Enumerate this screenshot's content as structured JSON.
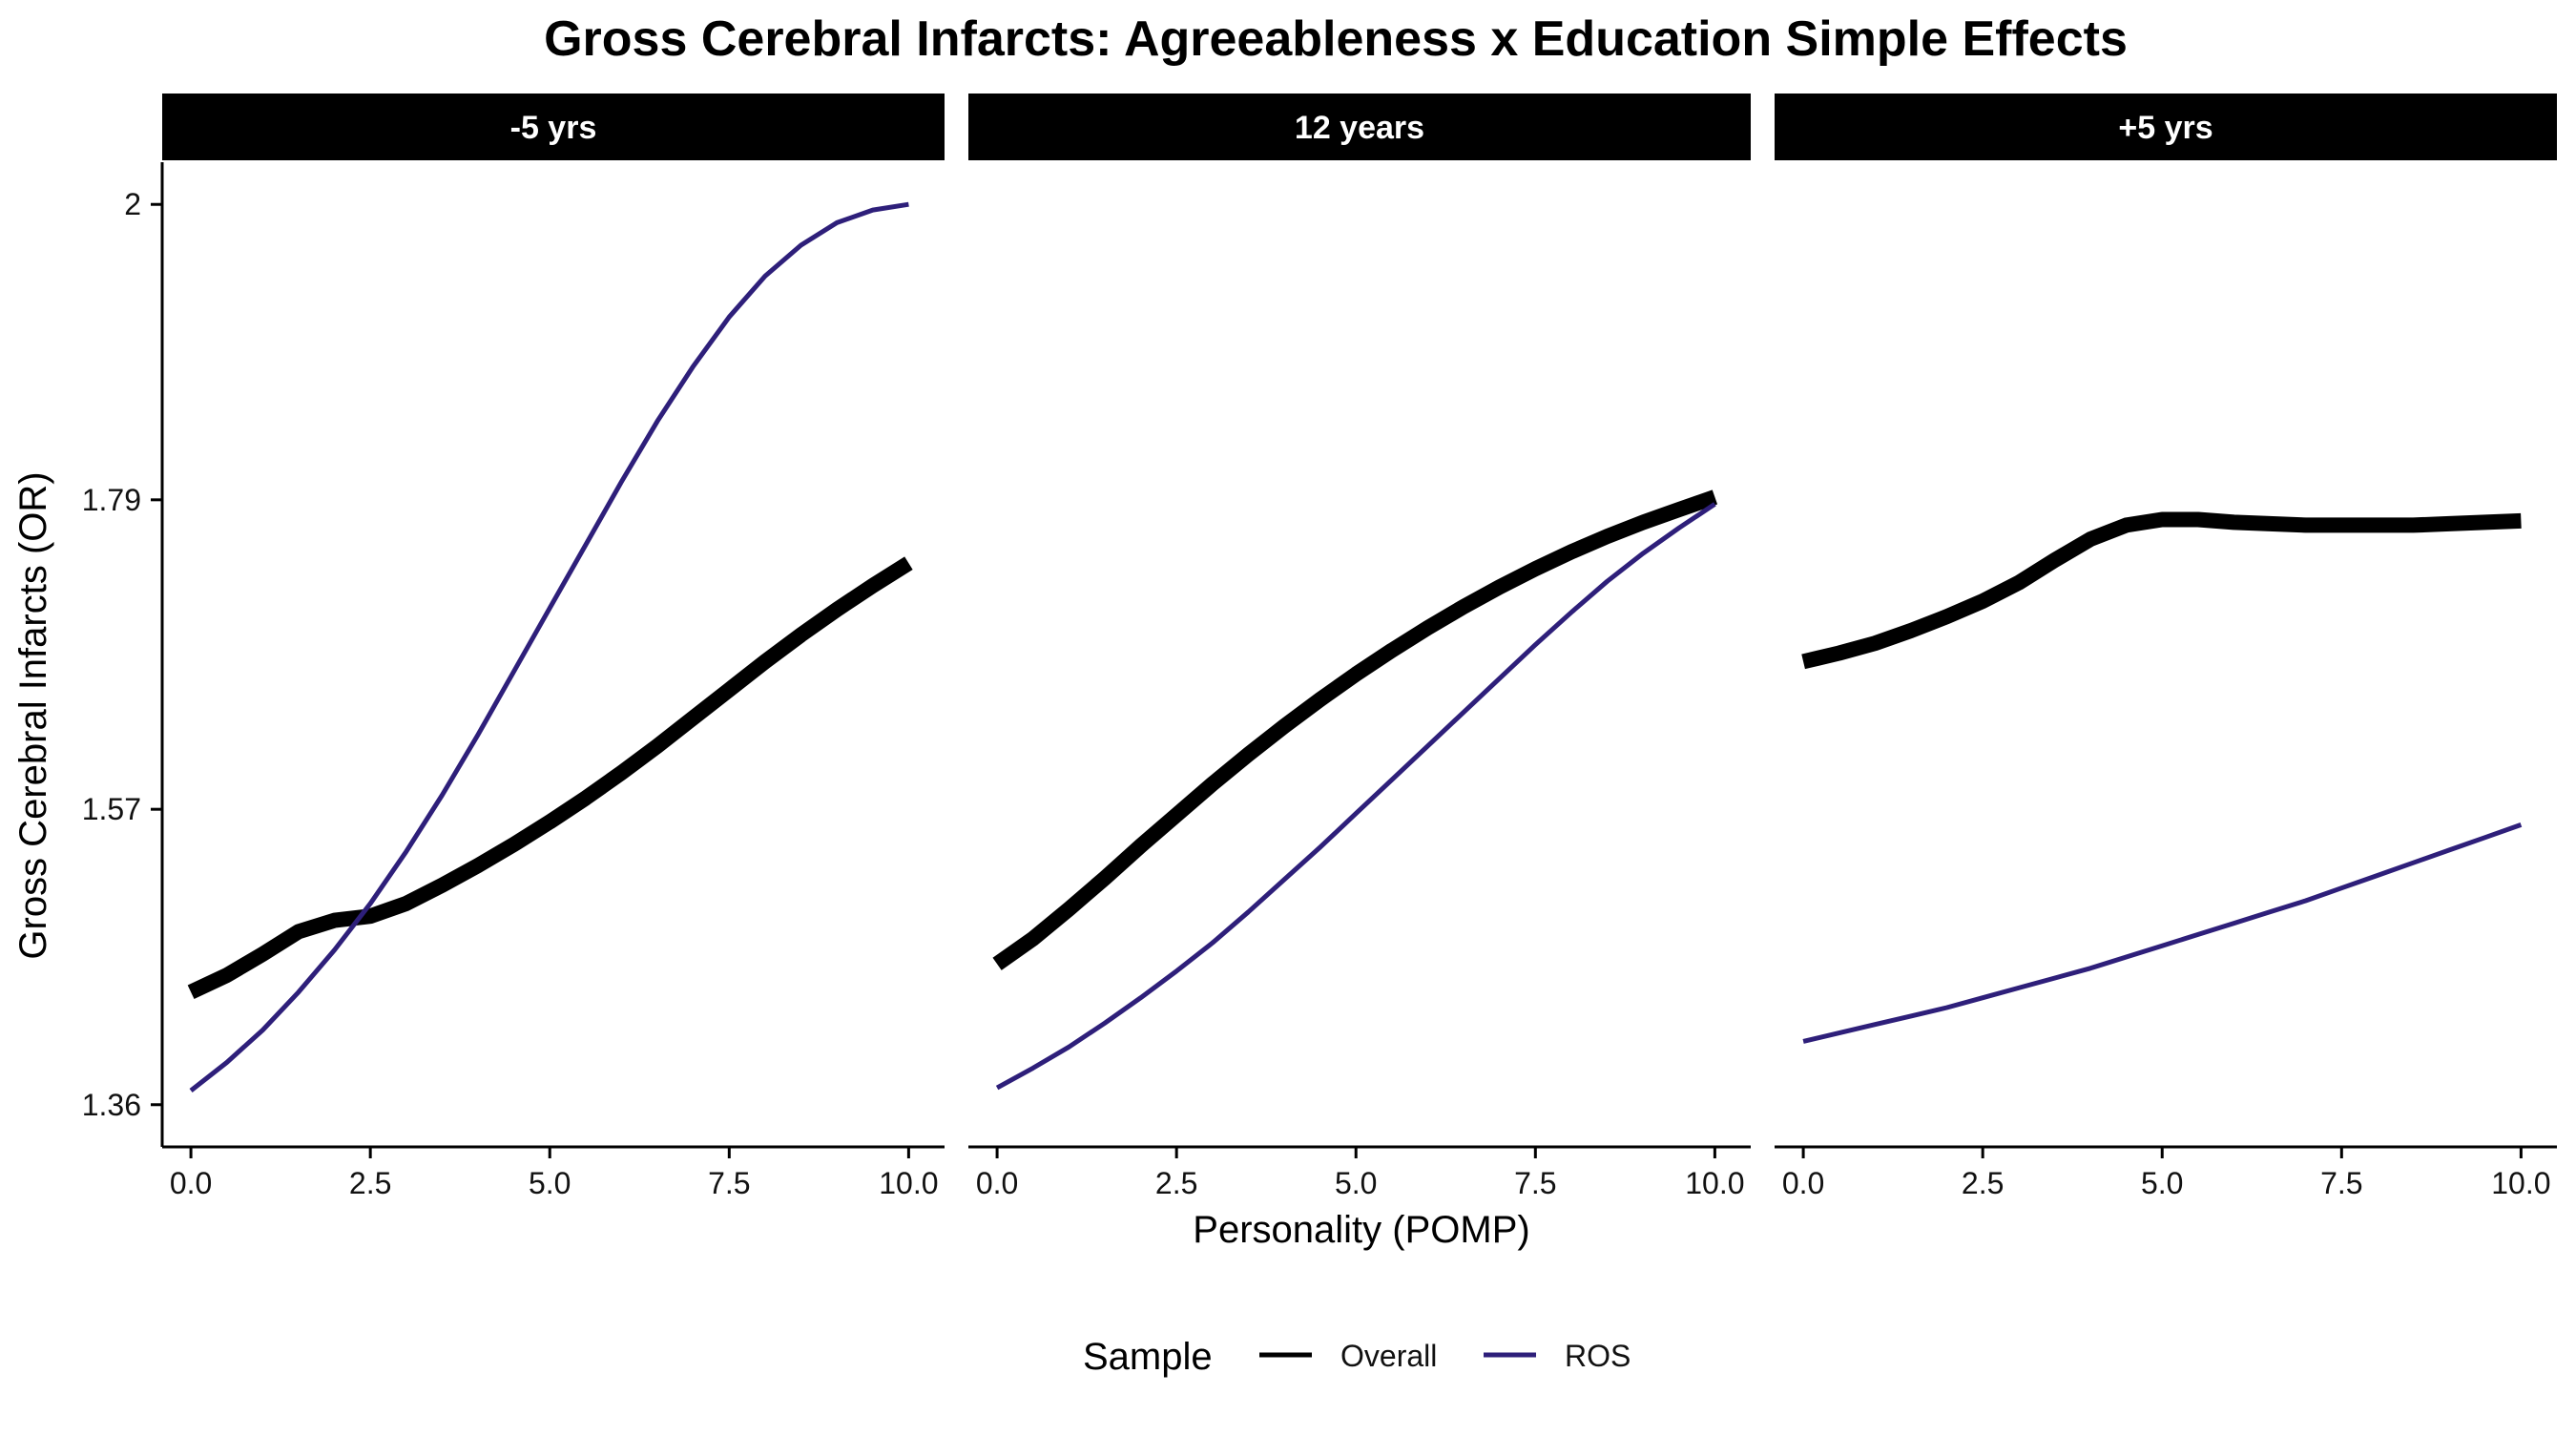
{
  "chart_data": {
    "type": "line",
    "title": "Gross Cerebral Infarcts: Agreeableness x Education Simple Effects",
    "xlabel": "Personality (POMP)",
    "ylabel": "Gross Cerebral Infarcts (OR)",
    "xlim": [
      -0.4,
      10.5
    ],
    "ylim": [
      1.33,
      2.03
    ],
    "x_ticks": [
      0,
      2.5,
      5,
      7.5,
      10
    ],
    "x_tick_labels": [
      "0.0",
      "2.5",
      "5.0",
      "7.5",
      "10.0"
    ],
    "y_ticks": [
      1.36,
      1.57,
      1.79,
      2.0
    ],
    "y_tick_labels": [
      "1.36",
      "1.57",
      "1.79",
      "2"
    ],
    "grid": false,
    "legend": {
      "title": "Sample",
      "placement": "bottom",
      "entries": [
        {
          "name": "Overall",
          "color": "#000000"
        },
        {
          "name": "ROS",
          "color": "#2e1f7a"
        }
      ]
    },
    "facets": [
      {
        "label": "-5 yrs",
        "series": [
          {
            "name": "Overall",
            "color": "#000000",
            "x": [
              0,
              0.5,
              1,
              1.5,
              2,
              2.5,
              3,
              3.5,
              4,
              4.5,
              5,
              5.5,
              6,
              6.5,
              7,
              7.5,
              8,
              8.5,
              9,
              9.5,
              10
            ],
            "y": [
              1.44,
              1.452,
              1.467,
              1.483,
              1.491,
              1.494,
              1.503,
              1.516,
              1.53,
              1.545,
              1.561,
              1.578,
              1.596,
              1.615,
              1.635,
              1.655,
              1.675,
              1.694,
              1.712,
              1.729,
              1.745
            ]
          },
          {
            "name": "ROS",
            "color": "#2e1f7a",
            "x": [
              0,
              0.5,
              1,
              1.5,
              2,
              2.5,
              3,
              3.5,
              4,
              4.5,
              5,
              5.5,
              6,
              6.5,
              7,
              7.5,
              8,
              8.5,
              9,
              9.5,
              10
            ],
            "y": [
              1.37,
              1.39,
              1.413,
              1.44,
              1.47,
              1.503,
              1.54,
              1.58,
              1.623,
              1.668,
              1.713,
              1.758,
              1.803,
              1.846,
              1.885,
              1.92,
              1.949,
              1.971,
              1.987,
              1.996,
              2.0
            ]
          }
        ]
      },
      {
        "label": "12 years",
        "series": [
          {
            "name": "Overall",
            "color": "#000000",
            "x": [
              0,
              0.5,
              1,
              1.5,
              2,
              2.5,
              3,
              3.5,
              4,
              4.5,
              5,
              5.5,
              6,
              6.5,
              7,
              7.5,
              8,
              8.5,
              9,
              9.5,
              10
            ],
            "y": [
              1.46,
              1.478,
              1.499,
              1.521,
              1.544,
              1.566,
              1.588,
              1.609,
              1.629,
              1.648,
              1.666,
              1.683,
              1.699,
              1.714,
              1.728,
              1.741,
              1.753,
              1.764,
              1.774,
              1.783,
              1.792
            ]
          },
          {
            "name": "ROS",
            "color": "#2e1f7a",
            "x": [
              0,
              0.5,
              1,
              1.5,
              2,
              2.5,
              3,
              3.5,
              4,
              4.5,
              5,
              5.5,
              6,
              6.5,
              7,
              7.5,
              8,
              8.5,
              9,
              9.5,
              10
            ],
            "y": [
              1.372,
              1.386,
              1.401,
              1.418,
              1.436,
              1.455,
              1.475,
              1.497,
              1.52,
              1.543,
              1.567,
              1.591,
              1.615,
              1.639,
              1.663,
              1.687,
              1.71,
              1.732,
              1.752,
              1.77,
              1.787
            ]
          }
        ]
      },
      {
        "label": "+5 yrs",
        "series": [
          {
            "name": "Overall",
            "color": "#000000",
            "x": [
              0,
              0.5,
              1,
              1.5,
              2,
              2.5,
              3,
              3.5,
              4,
              4.5,
              5,
              5.5,
              6,
              6.5,
              7,
              7.5,
              8,
              8.5,
              9,
              9.5,
              10
            ],
            "y": [
              1.675,
              1.681,
              1.688,
              1.697,
              1.707,
              1.718,
              1.731,
              1.747,
              1.762,
              1.772,
              1.776,
              1.776,
              1.774,
              1.773,
              1.772,
              1.772,
              1.772,
              1.772,
              1.773,
              1.774,
              1.775
            ]
          },
          {
            "name": "ROS",
            "color": "#2e1f7a",
            "x": [
              0,
              0.5,
              1,
              1.5,
              2,
              2.5,
              3,
              3.5,
              4,
              4.5,
              5,
              5.5,
              6,
              6.5,
              7,
              7.5,
              8,
              8.5,
              9,
              9.5,
              10
            ],
            "y": [
              1.405,
              1.411,
              1.417,
              1.423,
              1.429,
              1.436,
              1.443,
              1.45,
              1.457,
              1.465,
              1.473,
              1.481,
              1.489,
              1.497,
              1.505,
              1.514,
              1.523,
              1.532,
              1.541,
              1.55,
              1.559
            ]
          }
        ]
      }
    ]
  }
}
